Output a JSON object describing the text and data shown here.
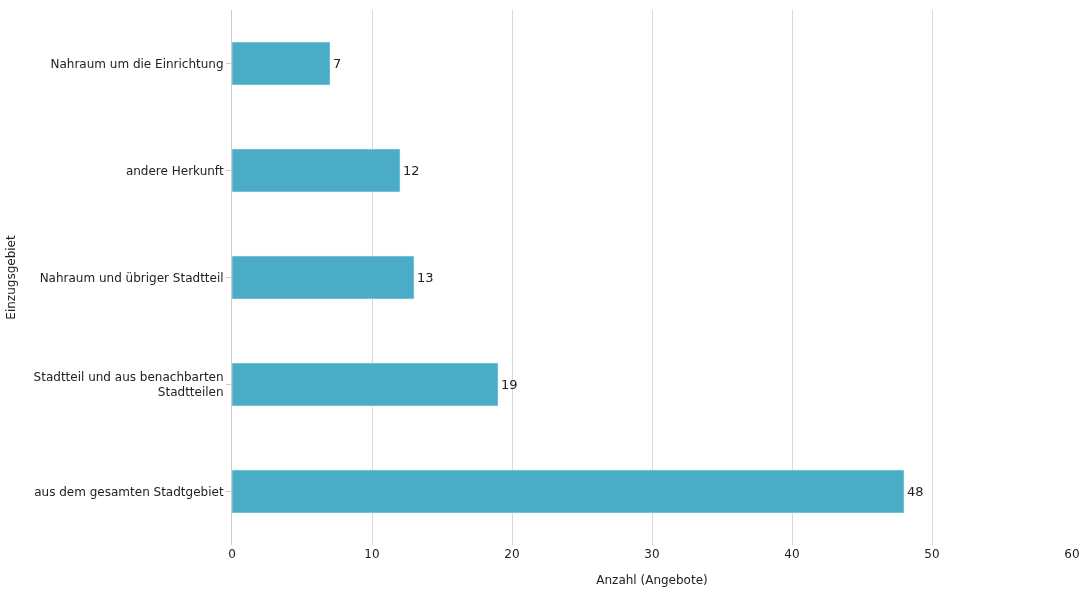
{
  "chart_data": {
    "type": "bar",
    "orientation": "horizontal",
    "categories": [
      "Nahraum um die Einrichtung",
      "andere Herkunft",
      "Nahraum und übriger Stadtteil",
      "Stadtteil und aus benachbarten Stadtteilen",
      "aus dem gesamten Stadtgebiet"
    ],
    "values": [
      7,
      12,
      13,
      19,
      48
    ],
    "color": "#4aacc6",
    "xlabel": "Anzahl (Angebote)",
    "ylabel": "Einzugsgebiet",
    "xlim": [
      0,
      60
    ],
    "xticks": [
      0,
      10,
      20,
      30,
      40,
      50,
      60
    ],
    "grid": "x",
    "data_labels": true
  }
}
